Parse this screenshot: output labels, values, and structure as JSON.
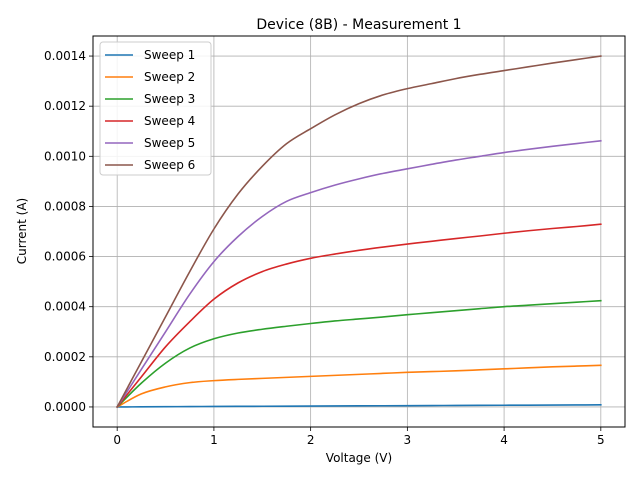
{
  "chart_data": {
    "type": "line",
    "title": "Device (8B) - Measurement 1",
    "xlabel": "Voltage (V)",
    "ylabel": "Current (A)",
    "xlim": [
      -0.25,
      5.25
    ],
    "ylim": [
      -8e-05,
      0.00148
    ],
    "xticks": [
      0,
      1,
      2,
      3,
      4,
      5
    ],
    "xtick_labels": [
      "0",
      "1",
      "2",
      "3",
      "4",
      "5"
    ],
    "yticks": [
      0,
      0.0002,
      0.0004,
      0.0006,
      0.0008,
      0.001,
      0.0012,
      0.0014
    ],
    "ytick_labels": [
      "0.0000",
      "0.0002",
      "0.0004",
      "0.0006",
      "0.0008",
      "0.0010",
      "0.0012",
      "0.0014"
    ],
    "grid": true,
    "legend_position": "top-left",
    "series": [
      {
        "name": "Sweep 1",
        "color": "#1f77b4",
        "x": [
          0,
          0.25,
          0.5,
          0.75,
          1,
          1.25,
          1.5,
          1.75,
          2,
          2.25,
          2.5,
          2.75,
          3,
          3.25,
          3.5,
          3.75,
          4,
          4.25,
          4.5,
          4.75,
          5
        ],
        "y": [
          0,
          5e-07,
          1e-06,
          1.5e-06,
          2e-06,
          2.4e-06,
          2.8e-06,
          3.2e-06,
          3.6e-06,
          4e-06,
          4.4e-06,
          4.8e-06,
          5.2e-06,
          5.6e-06,
          6e-06,
          6.4e-06,
          6.8e-06,
          7.2e-06,
          7.6e-06,
          8e-06,
          8.5e-06
        ]
      },
      {
        "name": "Sweep 2",
        "color": "#ff7f0e",
        "x": [
          0,
          0.25,
          0.5,
          0.75,
          1,
          1.25,
          1.5,
          1.75,
          2,
          2.25,
          2.5,
          2.75,
          3,
          3.25,
          3.5,
          3.75,
          4,
          4.25,
          4.5,
          4.75,
          5
        ],
        "y": [
          0,
          5.2e-05,
          8e-05,
          9.7e-05,
          0.000105,
          0.00011,
          0.000114,
          0.000118,
          0.000122,
          0.000126,
          0.00013,
          0.000134,
          0.000138,
          0.000141,
          0.000144,
          0.000148,
          0.000152,
          0.000156,
          0.00016,
          0.000163,
          0.000166
        ]
      },
      {
        "name": "Sweep 3",
        "color": "#2ca02c",
        "x": [
          0,
          0.25,
          0.5,
          0.75,
          1,
          1.25,
          1.5,
          1.75,
          2,
          2.25,
          2.5,
          2.75,
          3,
          3.25,
          3.5,
          3.75,
          4,
          4.25,
          4.5,
          4.75,
          5
        ],
        "y": [
          0,
          9.5e-05,
          0.000175,
          0.000235,
          0.000272,
          0.000295,
          0.00031,
          0.000322,
          0.000333,
          0.000343,
          0.000351,
          0.000359,
          0.000368,
          0.000376,
          0.000384,
          0.000392,
          0.0004,
          0.000406,
          0.000412,
          0.000418,
          0.000424
        ]
      },
      {
        "name": "Sweep 4",
        "color": "#d62728",
        "x": [
          0,
          0.25,
          0.5,
          0.75,
          1,
          1.25,
          1.5,
          1.75,
          2,
          2.25,
          2.5,
          2.75,
          3,
          3.25,
          3.5,
          3.75,
          4,
          4.25,
          4.5,
          4.75,
          5
        ],
        "y": [
          0,
          0.00012,
          0.00024,
          0.00034,
          0.00043,
          0.000495,
          0.00054,
          0.00057,
          0.000593,
          0.00061,
          0.000625,
          0.000638,
          0.00065,
          0.000661,
          0.000672,
          0.000682,
          0.000693,
          0.000703,
          0.000712,
          0.00072,
          0.000729
        ]
      },
      {
        "name": "Sweep 5",
        "color": "#9467bd",
        "x": [
          0,
          0.25,
          0.5,
          0.75,
          1,
          1.25,
          1.5,
          1.75,
          2,
          2.25,
          2.5,
          2.75,
          3,
          3.25,
          3.5,
          3.75,
          4,
          4.25,
          4.5,
          4.75,
          5
        ],
        "y": [
          0,
          0.00015,
          0.0003,
          0.00045,
          0.00058,
          0.00068,
          0.00076,
          0.00082,
          0.000855,
          0.000885,
          0.00091,
          0.000932,
          0.00095,
          0.000968,
          0.000985,
          0.001,
          0.001015,
          0.001028,
          0.00104,
          0.001051,
          0.001062
        ]
      },
      {
        "name": "Sweep 6",
        "color": "#8c564b",
        "x": [
          0,
          0.25,
          0.5,
          0.75,
          1,
          1.25,
          1.5,
          1.75,
          2,
          2.25,
          2.5,
          2.75,
          3,
          3.25,
          3.5,
          3.75,
          4,
          4.25,
          4.5,
          4.75,
          5
        ],
        "y": [
          0,
          0.00018,
          0.00036,
          0.00054,
          0.00071,
          0.00085,
          0.00096,
          0.00105,
          0.00111,
          0.001165,
          0.00121,
          0.001245,
          0.00127,
          0.00129,
          0.00131,
          0.001327,
          0.001342,
          0.001357,
          0.001372,
          0.001386,
          0.0014
        ]
      }
    ]
  }
}
